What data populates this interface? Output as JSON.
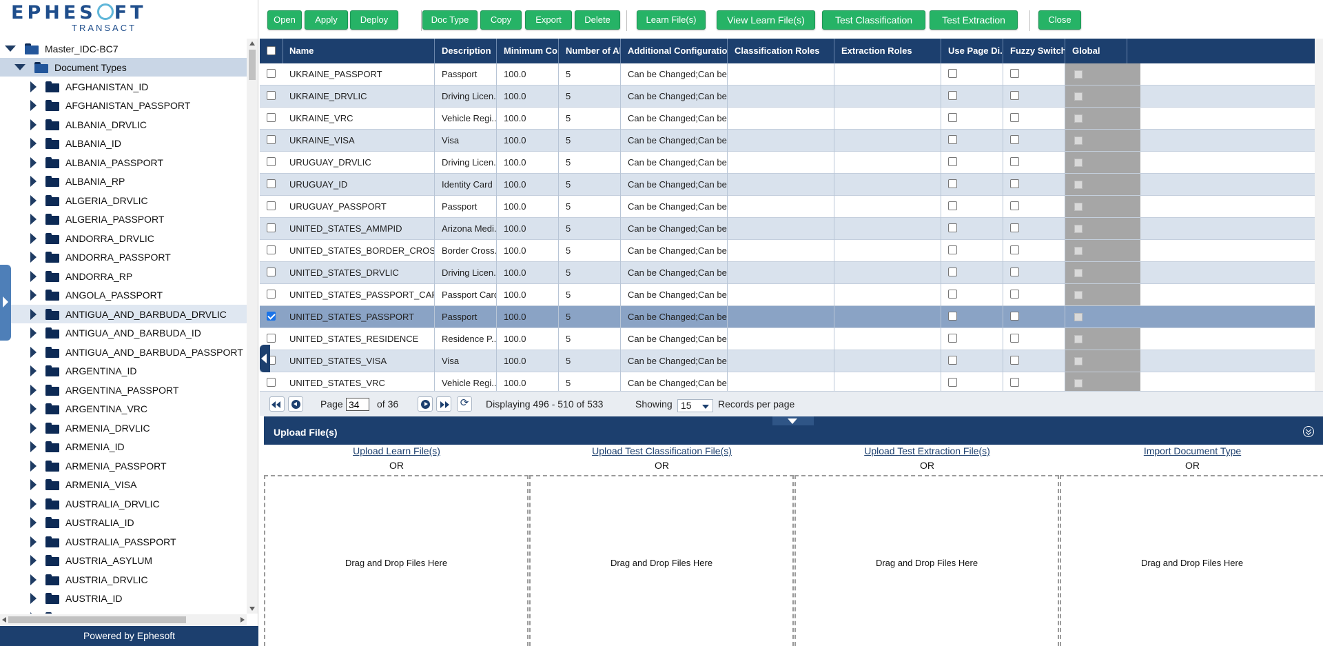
{
  "logo": {
    "brand": "EPHESOFT",
    "product": "TRANSACT"
  },
  "tree": {
    "root": "Master_IDC-BC7",
    "section": "Document Types",
    "items": [
      "AFGHANISTAN_ID",
      "AFGHANISTAN_PASSPORT",
      "ALBANIA_DRVLIC",
      "ALBANIA_ID",
      "ALBANIA_PASSPORT",
      "ALBANIA_RP",
      "ALGERIA_DRVLIC",
      "ALGERIA_PASSPORT",
      "ANDORRA_DRVLIC",
      "ANDORRA_PASSPORT",
      "ANDORRA_RP",
      "ANGOLA_PASSPORT",
      "ANTIGUA_AND_BARBUDA_DRVLIC",
      "ANTIGUA_AND_BARBUDA_ID",
      "ANTIGUA_AND_BARBUDA_PASSPORT",
      "ARGENTINA_ID",
      "ARGENTINA_PASSPORT",
      "ARGENTINA_VRC",
      "ARMENIA_DRVLIC",
      "ARMENIA_ID",
      "ARMENIA_PASSPORT",
      "ARMENIA_VISA",
      "AUSTRALIA_DRVLIC",
      "AUSTRALIA_ID",
      "AUSTRALIA_PASSPORT",
      "AUSTRIA_ASYLUM",
      "AUSTRIA_DRVLIC",
      "AUSTRIA_ID",
      "AUSTRIA_PASSPORT"
    ],
    "selected_index": 12
  },
  "footer": "Powered by Ephesoft",
  "toolbar": {
    "open": "Open",
    "apply": "Apply",
    "deploy": "Deploy",
    "doc_type": "Doc Type",
    "copy": "Copy",
    "export": "Export",
    "delete": "Delete",
    "learn_files": "Learn File(s)",
    "view_learn_files": "View Learn File(s)",
    "test_classification": "Test Classification",
    "test_extraction": "Test Extraction",
    "close": "Close"
  },
  "grid": {
    "headers": [
      "Name",
      "Description",
      "Minimum Co...",
      "Number of Al...",
      "Additional Configurations",
      "Classification Roles",
      "Extraction Roles",
      "Use Page Di...",
      "Fuzzy Switch",
      "Global"
    ],
    "rows": [
      {
        "name": "UKRAINE_PASSPORT",
        "desc": "Passport",
        "min": "100.0",
        "num": "5",
        "cfg": "Can be Changed;Can be A...",
        "checked": false
      },
      {
        "name": "UKRAINE_DRVLIC",
        "desc": "Driving Licen...",
        "min": "100.0",
        "num": "5",
        "cfg": "Can be Changed;Can be A...",
        "checked": false
      },
      {
        "name": "UKRAINE_VRC",
        "desc": "Vehicle Regi...",
        "min": "100.0",
        "num": "5",
        "cfg": "Can be Changed;Can be A...",
        "checked": false
      },
      {
        "name": "UKRAINE_VISA",
        "desc": "Visa",
        "min": "100.0",
        "num": "5",
        "cfg": "Can be Changed;Can be A...",
        "checked": false
      },
      {
        "name": "URUGUAY_DRVLIC",
        "desc": "Driving Licen...",
        "min": "100.0",
        "num": "5",
        "cfg": "Can be Changed;Can be A...",
        "checked": false
      },
      {
        "name": "URUGUAY_ID",
        "desc": "Identity Card",
        "min": "100.0",
        "num": "5",
        "cfg": "Can be Changed;Can be A...",
        "checked": false
      },
      {
        "name": "URUGUAY_PASSPORT",
        "desc": "Passport",
        "min": "100.0",
        "num": "5",
        "cfg": "Can be Changed;Can be A...",
        "checked": false
      },
      {
        "name": "UNITED_STATES_AMMPID",
        "desc": "Arizona Medi...",
        "min": "100.0",
        "num": "5",
        "cfg": "Can be Changed;Can be A...",
        "checked": false
      },
      {
        "name": "UNITED_STATES_BORDER_CROSSING",
        "desc": "Border Cross...",
        "min": "100.0",
        "num": "5",
        "cfg": "Can be Changed;Can be A...",
        "checked": false
      },
      {
        "name": "UNITED_STATES_DRVLIC",
        "desc": "Driving Licen...",
        "min": "100.0",
        "num": "5",
        "cfg": "Can be Changed;Can be A...",
        "checked": false
      },
      {
        "name": "UNITED_STATES_PASSPORT_CARD",
        "desc": "Passport Card",
        "min": "100.0",
        "num": "5",
        "cfg": "Can be Changed;Can be A...",
        "checked": false
      },
      {
        "name": "UNITED_STATES_PASSPORT",
        "desc": "Passport",
        "min": "100.0",
        "num": "5",
        "cfg": "Can be Changed;Can be A...",
        "checked": true
      },
      {
        "name": "UNITED_STATES_RESIDENCE",
        "desc": "Residence P...",
        "min": "100.0",
        "num": "5",
        "cfg": "Can be Changed;Can be A...",
        "checked": false
      },
      {
        "name": "UNITED_STATES_VISA",
        "desc": "Visa",
        "min": "100.0",
        "num": "5",
        "cfg": "Can be Changed;Can be A...",
        "checked": false
      },
      {
        "name": "UNITED_STATES_VRC",
        "desc": "Vehicle Regi...",
        "min": "100.0",
        "num": "5",
        "cfg": "Can be Changed;Can be A...",
        "checked": false
      }
    ]
  },
  "pager": {
    "page_label": "Page",
    "page_value": "34",
    "of_label": "of 36",
    "displaying": "Displaying 496 - 510 of 533",
    "showing_label": "Showing",
    "per_page": "15",
    "records_label": "Records per page"
  },
  "upload": {
    "title": "Upload File(s)",
    "or_label": "OR",
    "drop_label": "Drag and Drop Files Here",
    "links": [
      "Upload Learn File(s)",
      "Upload Test Classification File(s)",
      "Upload Test Extraction File(s)",
      "Import Document Type"
    ]
  },
  "colors": {
    "navy": "#1c3f6e",
    "green_button": "#26b366",
    "row_alt": "#d9e2ed",
    "row_selected": "#8aa3c5"
  }
}
